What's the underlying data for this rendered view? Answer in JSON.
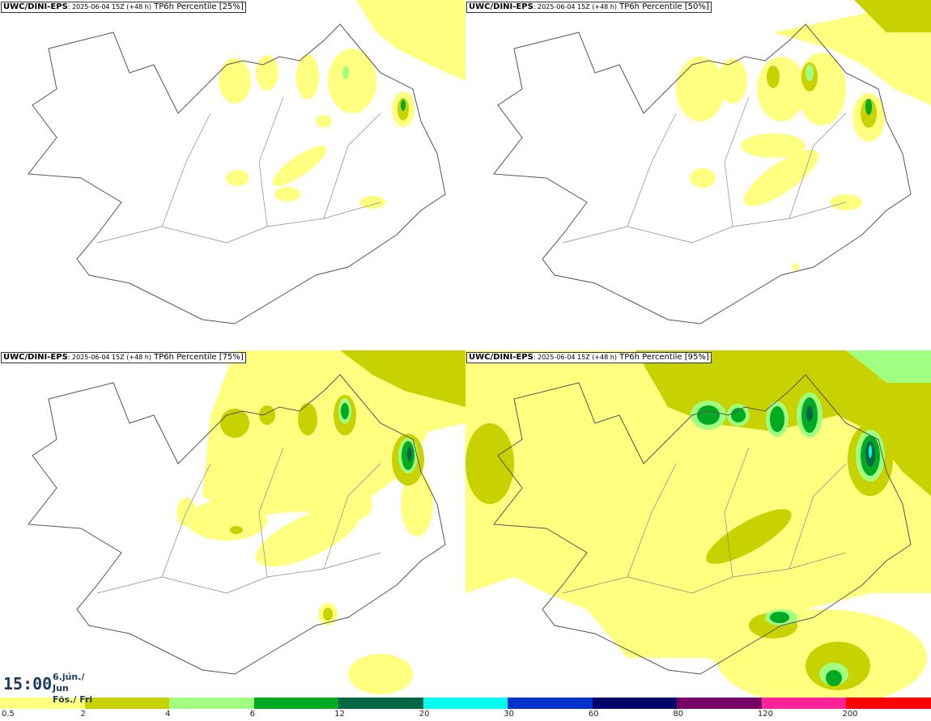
{
  "panels": [
    {
      "model": "UWC/DINI-EPS",
      "run": ": 2025-06-04 15Z (+48 h)",
      "field": "TP6h Percentile [25%]"
    },
    {
      "model": "UWC/DINI-EPS",
      "run": ": 2025-06-04 15Z (+48 h)",
      "field": "TP6h Percentile [50%]"
    },
    {
      "model": "UWC/DINI-EPS",
      "run": ": 2025-06-04 15Z (+48 h)",
      "field": "TP6h Percentile [75%]"
    },
    {
      "model": "UWC/DINI-EPS",
      "run": ": 2025-06-04 15Z (+48 h)",
      "field": "TP6h Percentile [95%]"
    }
  ],
  "valid_time": {
    "time": "15:00",
    "date": "6.jún./ Jun",
    "day": "Fös./ Fri"
  },
  "legend": {
    "ticks": [
      "0.5",
      "2",
      "4",
      "6",
      "12",
      "20",
      "30",
      "60",
      "80",
      "120",
      "200"
    ],
    "colors": [
      "#ffff80",
      "#c8d200",
      "#a0ff80",
      "#00aa22",
      "#006644",
      "#00ffee",
      "#0033cc",
      "#000066",
      "#770066",
      "#ff2299",
      "#ff0000"
    ]
  }
}
